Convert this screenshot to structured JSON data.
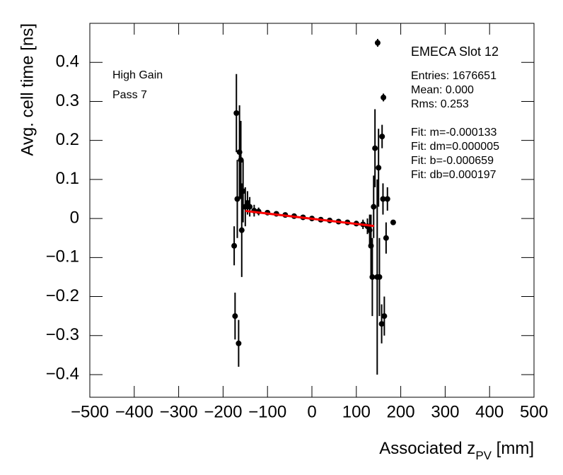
{
  "chart_data": {
    "type": "scatter",
    "ylabel": "Avg. cell time [ns]",
    "xlabel": {
      "main": "Associated z",
      "sub": "PV",
      "unit": " [mm]"
    },
    "annotations": [
      "High Gain",
      "Pass 7"
    ],
    "stats_title": "EMECA Slot 12",
    "stats": [
      "Entries: 1676651",
      "Mean: 0.000",
      "Rms: 0.253"
    ],
    "fit_text": [
      "Fit: m=-0.000133",
      "Fit: dm=0.000005",
      "Fit: b=-0.000659",
      "Fit: db=0.000197"
    ],
    "color": "#000000",
    "x": [
      -175,
      -173,
      -170,
      -168,
      -165,
      -163,
      -160,
      -158,
      -155,
      -150,
      -145,
      -140,
      -130,
      -120,
      -100,
      -80,
      -60,
      -40,
      -20,
      0,
      20,
      40,
      60,
      80,
      100,
      115,
      125,
      130,
      133,
      136,
      139,
      142,
      148,
      147,
      150,
      152,
      161,
      157,
      158,
      160,
      163,
      167,
      170,
      183
    ],
    "values": [
      -0.07,
      -0.25,
      0.27,
      0.05,
      -0.32,
      0.17,
      0.15,
      -0.03,
      0.07,
      0.03,
      0.04,
      0.03,
      0.02,
      0.018,
      0.015,
      0.012,
      0.009,
      0.006,
      0.003,
      0.0,
      -0.003,
      -0.005,
      -0.008,
      -0.01,
      -0.013,
      -0.015,
      -0.02,
      -0.03,
      -0.07,
      -0.15,
      0.03,
      0.18,
      0.45,
      -0.15,
      0.13,
      -0.15,
      0.31,
      -0.27,
      0.21,
      0.05,
      -0.25,
      -0.05,
      0.05,
      -0.01
    ],
    "errors": [
      0.05,
      0.06,
      0.1,
      0.1,
      0.06,
      0.12,
      0.1,
      0.12,
      0.08,
      0.05,
      0.03,
      0.025,
      0.015,
      0.01,
      0.006,
      0.005,
      0.004,
      0.004,
      0.004,
      0.004,
      0.004,
      0.004,
      0.004,
      0.005,
      0.007,
      0.012,
      0.02,
      0.04,
      0.08,
      0.1,
      0.08,
      0.1,
      0.01,
      0.25,
      0.1,
      0.1,
      0.01,
      0.05,
      0.03,
      0.04,
      0.05,
      0.04,
      0.03,
      0.005
    ],
    "fit": {
      "color": "#ff0000",
      "x": [
        -150,
        140
      ],
      "values": [
        0.0193,
        -0.0193
      ]
    },
    "xlim": [
      -500,
      500
    ],
    "ylim": [
      -0.458,
      0.5
    ],
    "xticks": [
      {
        "value": -500,
        "label": "−500"
      },
      {
        "value": -400,
        "label": "−400"
      },
      {
        "value": -300,
        "label": "−300"
      },
      {
        "value": -200,
        "label": "−200"
      },
      {
        "value": -100,
        "label": "−100"
      },
      0,
      100,
      200,
      300,
      400,
      500
    ],
    "yticks": [
      {
        "value": -0.4,
        "label": "−0.4"
      },
      {
        "value": -0.3,
        "label": "−0.3"
      },
      {
        "value": -0.2,
        "label": "−0.2"
      },
      {
        "value": -0.1,
        "label": "−0.1"
      },
      0,
      0.1,
      0.2,
      0.3,
      0.4
    ]
  }
}
